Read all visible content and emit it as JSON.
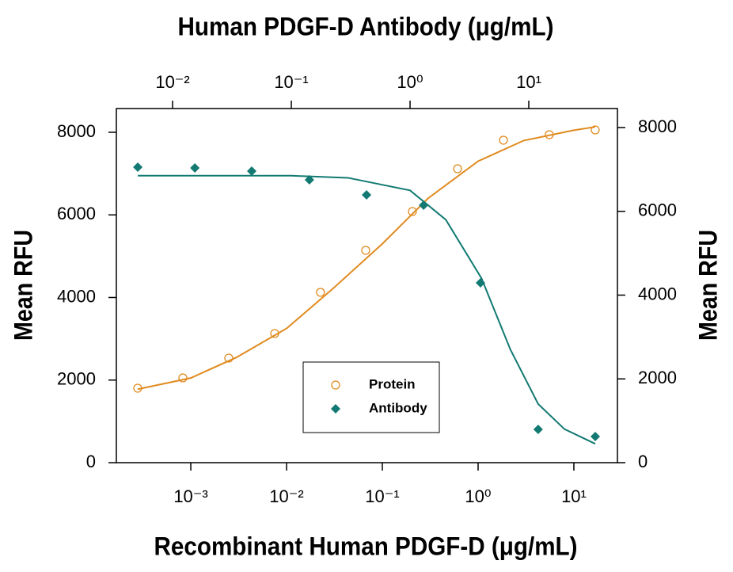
{
  "chart_data": {
    "type": "scatter",
    "title": "Human PDGF-D Antibody (μg/mL)",
    "xlabel": "Recombinant Human PDGF-D (μg/mL)",
    "ylabel": "Mean RFU",
    "y2label": "Mean RFU",
    "xscale": "log",
    "x2scale": "log",
    "xlim": [
      0.000167,
      28.5
    ],
    "xticks": [
      {
        "value": 0.001,
        "label": "10⁻³"
      },
      {
        "value": 0.01,
        "label": "10⁻²"
      },
      {
        "value": 0.1,
        "label": "10⁻¹"
      },
      {
        "value": 1,
        "label": "10⁰"
      },
      {
        "value": 10,
        "label": "10¹"
      }
    ],
    "x2lim": [
      0.00336,
      55.8
    ],
    "x2ticks": [
      {
        "value": 0.01,
        "label": "10⁻²"
      },
      {
        "value": 0.1,
        "label": "10⁻¹"
      },
      {
        "value": 1,
        "label": "10⁰"
      },
      {
        "value": 10,
        "label": "10¹"
      }
    ],
    "ylim": [
      0,
      8575
    ],
    "yticks": [
      0,
      2000,
      4000,
      6000,
      8000
    ],
    "y2lim": [
      0,
      8454
    ],
    "y2ticks": [
      0,
      2000,
      4000,
      6000,
      8000
    ],
    "series": [
      {
        "name": "Protein",
        "color": "#e08a1e",
        "marker": "open-circle",
        "xaxis": "x",
        "axis": "y",
        "x": [
          0.000279,
          0.000826,
          0.00249,
          0.00752,
          0.0226,
          0.067,
          0.206,
          0.61,
          1.84,
          5.54,
          16.7
        ],
        "values": [
          1803,
          2053,
          2532,
          3127,
          4124,
          5141,
          6081,
          7117,
          7807,
          7942,
          8057
        ],
        "fit_x": [
          0.000279,
          0.001,
          0.003,
          0.01,
          0.03,
          0.1,
          0.3,
          1,
          3,
          10,
          16.7
        ],
        "fit_y": [
          1780,
          2050,
          2550,
          3250,
          4200,
          5300,
          6400,
          7300,
          7800,
          8050,
          8130
        ]
      },
      {
        "name": "Antibody",
        "color": "#127a72",
        "marker": "diamond",
        "xaxis": "x2",
        "axis": "y2",
        "x": [
          0.00509,
          0.0154,
          0.0464,
          0.142,
          0.43,
          1.3,
          3.92,
          12.0,
          36.3
        ],
        "values": [
          7054,
          7035,
          6960,
          6752,
          6392,
          6146,
          4293,
          794,
          624
        ],
        "fit_x": [
          0.00509,
          0.1,
          0.3,
          1,
          2,
          4,
          7,
          12,
          20,
          36.3
        ],
        "fit_y": [
          6850,
          6850,
          6800,
          6500,
          5800,
          4400,
          2700,
          1400,
          800,
          450
        ]
      }
    ]
  }
}
